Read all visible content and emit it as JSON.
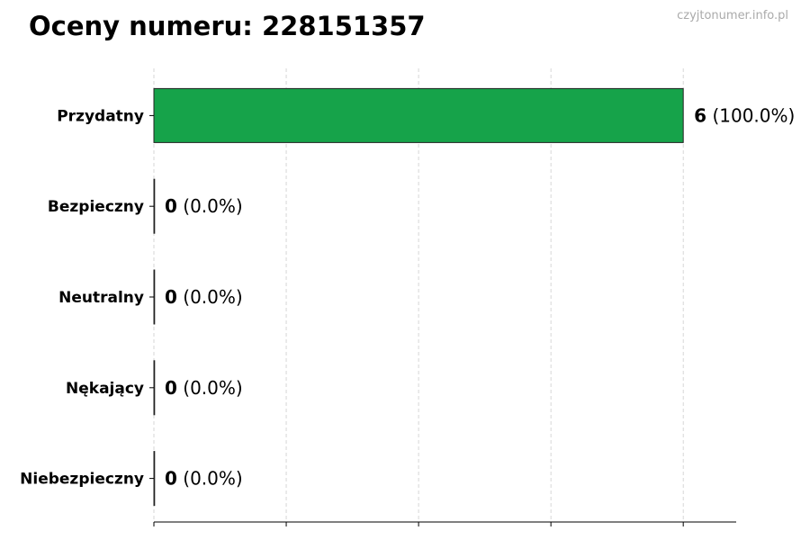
{
  "chart_data": {
    "type": "bar",
    "orientation": "horizontal",
    "title": "Oceny numeru: 228151357",
    "watermark": "czyjtonumer.info.pl",
    "categories": [
      "Przydatny",
      "Bezpieczny",
      "Neutralny",
      "Nękający",
      "Niebezpieczny"
    ],
    "values": [
      6,
      0,
      0,
      0,
      0
    ],
    "labels": [
      "(100.0%)",
      "(0.0%)",
      "(0.0%)",
      "(0.0%)",
      "(0.0%)"
    ],
    "colors": [
      "#16a34a",
      "#16a34a",
      "#16a34a",
      "#16a34a",
      "#16a34a"
    ],
    "xlim": [
      0,
      6.6
    ],
    "xticks": [
      0,
      1.5,
      3,
      4.5,
      6
    ],
    "xtick_labels_shown": false,
    "grid": "vertical dashed",
    "xlabel": "",
    "ylabel": ""
  }
}
